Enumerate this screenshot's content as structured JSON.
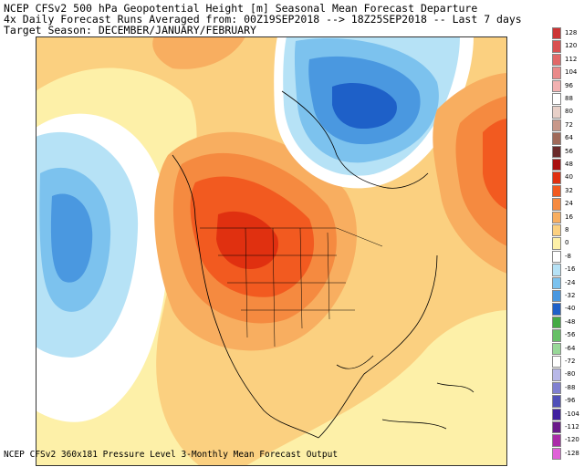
{
  "header": {
    "line1": "NCEP CFSv2 500 hPa Geopotential Height [m] Seasonal Mean Forecast Departure",
    "line2": "4x Daily Forecast Runs Averaged from: 00Z19SEP2018 --> 18Z25SEP2018 -- Last 7 days",
    "line3": "Target Season: DECEMBER/JANUARY/FEBRUARY"
  },
  "footer": "NCEP CFSv2 360x181 Pressure Level 3-Monthly Mean Forecast Output",
  "colorbar": [
    {
      "label": "128",
      "color": "#cc3333"
    },
    {
      "label": "120",
      "color": "#d95050"
    },
    {
      "label": "112",
      "color": "#e26868"
    },
    {
      "label": "104",
      "color": "#ea8a8a"
    },
    {
      "label": "96",
      "color": "#f2b1b1"
    },
    {
      "label": "88",
      "color": "#ffffff"
    },
    {
      "label": "80",
      "color": "#e8d0c8"
    },
    {
      "label": "72",
      "color": "#c8988a"
    },
    {
      "label": "64",
      "color": "#a06a5a"
    },
    {
      "label": "56",
      "color": "#6a2a2a"
    },
    {
      "label": "48",
      "color": "#aa1010"
    },
    {
      "label": "40",
      "color": "#e03010"
    },
    {
      "label": "32",
      "color": "#f25a20"
    },
    {
      "label": "24",
      "color": "#f58a40"
    },
    {
      "label": "16",
      "color": "#f8ae60"
    },
    {
      "label": "8",
      "color": "#fbd080"
    },
    {
      "label": "0",
      "color": "#fdf0a8"
    },
    {
      "label": "-8",
      "color": "#ffffff"
    },
    {
      "label": "-16",
      "color": "#b6e2f6"
    },
    {
      "label": "-24",
      "color": "#7cc2ee"
    },
    {
      "label": "-32",
      "color": "#4a98e0"
    },
    {
      "label": "-40",
      "color": "#1e60c8"
    },
    {
      "label": "-48",
      "color": "#44aa44"
    },
    {
      "label": "-56",
      "color": "#66c066"
    },
    {
      "label": "-64",
      "color": "#98d898"
    },
    {
      "label": "-72",
      "color": "#ffffff"
    },
    {
      "label": "-80",
      "color": "#b8b8e8"
    },
    {
      "label": "-88",
      "color": "#8080d0"
    },
    {
      "label": "-96",
      "color": "#5050b8"
    },
    {
      "label": "-104",
      "color": "#4020a0"
    },
    {
      "label": "-112",
      "color": "#6a1a8a"
    },
    {
      "label": "-120",
      "color": "#aa2aa8"
    },
    {
      "label": "-128",
      "color": "#e060d8"
    }
  ]
}
